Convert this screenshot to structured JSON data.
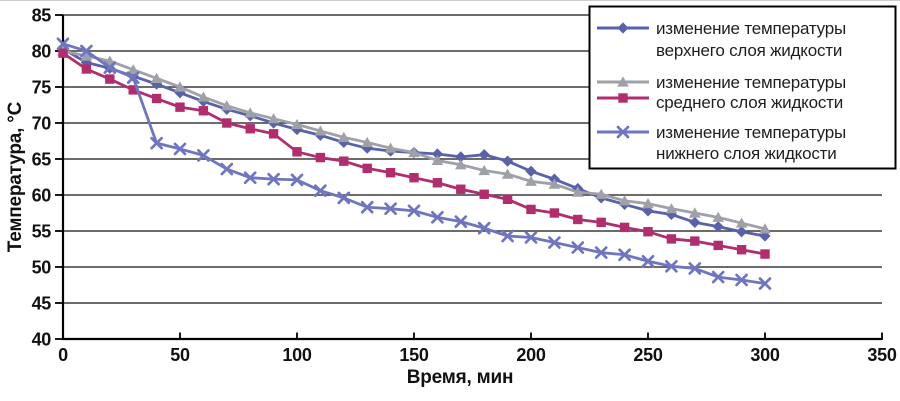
{
  "chart_data": {
    "type": "line",
    "title": "",
    "xlabel": "Время, мин",
    "ylabel": "Температура, °C",
    "xlim": [
      0,
      350
    ],
    "ylim": [
      40,
      85
    ],
    "x_ticks": [
      0,
      50,
      100,
      150,
      200,
      250,
      300,
      350
    ],
    "y_ticks": [
      40,
      45,
      50,
      55,
      60,
      65,
      70,
      75,
      80,
      85
    ],
    "grid": "horizontal-only",
    "legend_position": "top-right",
    "colors": {
      "axis": "#000000",
      "grid": "#3c3c3c",
      "upper_layer": "#5A61AB",
      "middle_layer_triangle": "#9FA1A9",
      "middle_layer_square": "#B02D6E",
      "lower_layer": "#6F75BE"
    },
    "x": [
      0,
      10,
      20,
      30,
      40,
      50,
      60,
      70,
      80,
      90,
      100,
      110,
      120,
      130,
      140,
      150,
      160,
      170,
      180,
      190,
      200,
      210,
      220,
      230,
      240,
      250,
      260,
      270,
      280,
      290,
      300
    ],
    "series": [
      {
        "name": "изменение температуры верхнего слоя жидкости",
        "marker": "diamond",
        "color": "#5A61AB",
        "values": [
          80.3,
          78.4,
          77.6,
          76.5,
          75.4,
          74.2,
          73.0,
          71.9,
          71.0,
          70.0,
          69.1,
          68.3,
          67.3,
          66.5,
          66.1,
          65.9,
          65.7,
          65.3,
          65.6,
          64.7,
          63.3,
          62.2,
          60.9,
          59.6,
          58.7,
          57.8,
          57.3,
          56.2,
          55.6,
          54.9,
          54.3
        ]
      },
      {
        "name": "изменение температуры среднего слоя жидкости",
        "marker": "triangle",
        "color": "#9FA1A9",
        "values": [
          80.0,
          79.3,
          78.6,
          77.4,
          76.2,
          75.0,
          73.6,
          72.4,
          71.4,
          70.6,
          69.8,
          68.9,
          68.0,
          67.3,
          66.5,
          65.9,
          64.8,
          64.2,
          63.4,
          62.9,
          61.9,
          61.5,
          60.4,
          60.1,
          59.2,
          58.8,
          58.1,
          57.5,
          56.9,
          56.1,
          55.3
        ]
      },
      {
        "name": "изменение температуры среднего слоя жидкости",
        "marker": "square",
        "color": "#B02D6E",
        "values": [
          79.7,
          77.5,
          76.1,
          74.6,
          73.4,
          72.2,
          71.7,
          70.0,
          69.2,
          68.5,
          66.0,
          65.2,
          64.7,
          63.7,
          63.1,
          62.4,
          61.7,
          60.8,
          60.1,
          59.4,
          58.0,
          57.5,
          56.6,
          56.2,
          55.5,
          54.9,
          53.9,
          53.6,
          53.0,
          52.4,
          51.8
        ]
      },
      {
        "name": "изменение температуры нижнего слоя жидкости",
        "marker": "x",
        "color": "#6F75BE",
        "values": [
          81.0,
          80.0,
          77.7,
          76.3,
          67.2,
          66.4,
          65.5,
          63.6,
          62.4,
          62.2,
          62.1,
          60.6,
          59.6,
          58.3,
          58.1,
          57.8,
          56.9,
          56.3,
          55.4,
          54.3,
          54.1,
          53.4,
          52.7,
          52.0,
          51.7,
          50.8,
          50.1,
          49.8,
          48.6,
          48.2,
          47.7
        ]
      }
    ],
    "legend": [
      {
        "lines": [
          "изменение температуры",
          "верхнего слоя жидкости"
        ],
        "markers": [
          0
        ]
      },
      {
        "lines": [
          "изменение температуры",
          "среднего слоя жидкости"
        ],
        "markers": [
          1,
          2
        ]
      },
      {
        "lines": [
          "изменение температуры",
          "нижнего слоя жидкости"
        ],
        "markers": [
          3
        ]
      }
    ]
  }
}
